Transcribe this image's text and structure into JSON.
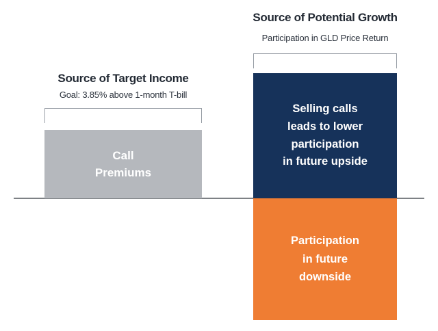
{
  "left_group": {
    "title": "Source of Target Income",
    "subtitle": "Goal: 3.85% above 1-month T-bill",
    "bar_label": "Call\nPremiums"
  },
  "right_group": {
    "title": "Source of Potential Growth",
    "subtitle": "Participation in GLD Price Return",
    "upper_bar_label": "Selling calls\nleads to lower\nparticipation\nin future upside",
    "lower_bar_label": "Participation\nin future\ndownside"
  },
  "colors": {
    "gray_bar": "#b5b8bd",
    "navy_bar": "#16325a",
    "orange_bar": "#ef7d33",
    "baseline": "#7d8185",
    "bracket_border": "#979da5",
    "title_text": "#232a34"
  }
}
